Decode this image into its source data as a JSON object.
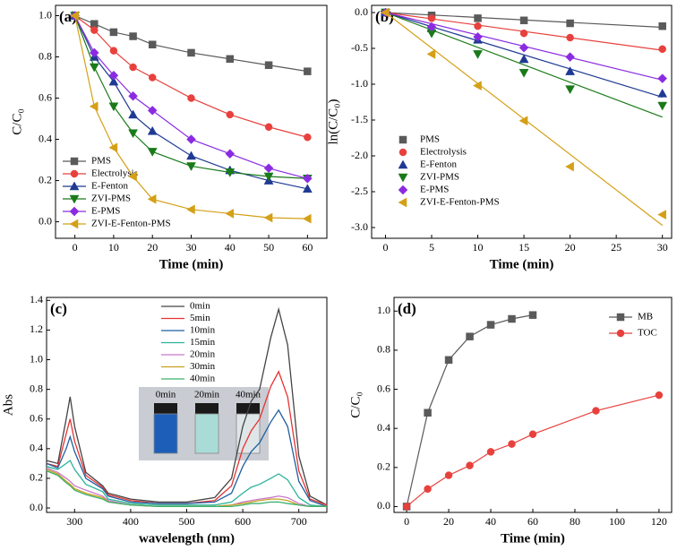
{
  "chart_data": [
    {
      "type": "line",
      "title": "(a)",
      "xlabel": "Time (min)",
      "ylabel": "C/C₀",
      "x": [
        0,
        5,
        10,
        15,
        20,
        30,
        40,
        50,
        60
      ],
      "series": [
        {
          "name": "PMS",
          "color": "#5a5a5a",
          "marker": "square",
          "values": [
            1.0,
            0.96,
            0.92,
            0.9,
            0.86,
            0.82,
            0.79,
            0.76,
            0.73
          ]
        },
        {
          "name": "Electrolysis",
          "color": "#e8413d",
          "marker": "circle",
          "values": [
            1.0,
            0.93,
            0.83,
            0.75,
            0.7,
            0.6,
            0.52,
            0.46,
            0.41
          ]
        },
        {
          "name": "E-Fenton",
          "color": "#1f3a93",
          "marker": "triangle-up",
          "values": [
            1.0,
            0.8,
            0.68,
            0.52,
            0.44,
            0.32,
            0.25,
            0.2,
            0.16
          ]
        },
        {
          "name": "ZVI-PMS",
          "color": "#1a7a1a",
          "marker": "triangle-down",
          "values": [
            1.0,
            0.75,
            0.56,
            0.43,
            0.34,
            0.27,
            0.24,
            0.22,
            0.21
          ]
        },
        {
          "name": "E-PMS",
          "color": "#8a2be2",
          "marker": "diamond",
          "values": [
            1.0,
            0.82,
            0.71,
            0.61,
            0.54,
            0.4,
            0.33,
            0.26,
            0.21
          ]
        },
        {
          "name": "ZVI-E-Fenton-PMS",
          "color": "#d4a017",
          "marker": "triangle-left",
          "values": [
            1.0,
            0.56,
            0.36,
            0.22,
            0.11,
            0.06,
            0.04,
            0.02,
            0.015
          ]
        }
      ],
      "xlim": [
        -5,
        65
      ],
      "xticks": [
        0,
        10,
        20,
        30,
        40,
        50,
        60
      ],
      "ylim": [
        -0.08,
        1.05
      ],
      "yticks": [
        {
          "value": 0,
          "label": "0.0"
        },
        {
          "value": 0.2,
          "label": "0.2"
        },
        {
          "value": 0.4,
          "label": "0.4"
        },
        {
          "value": 0.6,
          "label": "0.6"
        },
        {
          "value": 0.8,
          "label": "0.8"
        },
        {
          "value": 1,
          "label": "1.0"
        }
      ],
      "legend": "lower left"
    },
    {
      "type": "scatter",
      "title": "(b)",
      "xlabel": "Time (min)",
      "ylabel": "ln(C/C₀)",
      "fit": "linear",
      "x": [
        0,
        5,
        10,
        15,
        20,
        30
      ],
      "series": [
        {
          "name": "PMS",
          "color": "#5a5a5a",
          "marker": "square",
          "values": [
            0,
            -0.04,
            -0.08,
            -0.11,
            -0.15,
            -0.19
          ]
        },
        {
          "name": "Electrolysis",
          "color": "#e8413d",
          "marker": "circle",
          "values": [
            0,
            -0.08,
            -0.19,
            -0.29,
            -0.35,
            -0.51
          ]
        },
        {
          "name": "E-Fenton",
          "color": "#1f3a93",
          "marker": "triangle-up",
          "values": [
            0,
            -0.22,
            -0.38,
            -0.65,
            -0.82,
            -1.13
          ]
        },
        {
          "name": "ZVI-PMS",
          "color": "#1a7a1a",
          "marker": "triangle-down",
          "values": [
            0,
            -0.29,
            -0.58,
            -0.84,
            -1.07,
            -1.3
          ]
        },
        {
          "name": "E-PMS",
          "color": "#8a2be2",
          "marker": "diamond",
          "values": [
            0,
            -0.2,
            -0.34,
            -0.49,
            -0.62,
            -0.92
          ]
        },
        {
          "name": "ZVI-E-Fenton-PMS",
          "color": "#d4a017",
          "marker": "triangle-left",
          "values": [
            0,
            -0.58,
            -1.02,
            -1.51,
            -2.15,
            -2.82
          ]
        }
      ],
      "xlim": [
        -1.5,
        31
      ],
      "xticks": [
        0,
        5,
        10,
        15,
        20,
        25,
        30
      ],
      "ylim": [
        -3.15,
        0.1
      ],
      "yticks": [
        {
          "value": 0,
          "label": "0.0"
        },
        -0.5,
        {
          "value": -1,
          "label": "-1.0"
        },
        -1.5,
        {
          "value": -2,
          "label": "-2.0"
        },
        -2.5,
        {
          "value": -3,
          "label": "-3.0"
        }
      ],
      "legend": "lower left"
    },
    {
      "type": "line",
      "title": "(c)",
      "xlabel": "wavelength (nm)",
      "ylabel": "Abs",
      "x": [
        250,
        270,
        285,
        292,
        300,
        320,
        350,
        360,
        400,
        450,
        500,
        550,
        580,
        600,
        615,
        630,
        650,
        664,
        680,
        700,
        720,
        750
      ],
      "series": [
        {
          "name": "0min",
          "color": "#444444",
          "values": [
            0.32,
            0.3,
            0.6,
            0.75,
            0.55,
            0.24,
            0.15,
            0.1,
            0.06,
            0.04,
            0.04,
            0.07,
            0.2,
            0.55,
            0.72,
            0.8,
            1.15,
            1.34,
            1.1,
            0.35,
            0.08,
            0.02
          ]
        },
        {
          "name": "5min",
          "color": "#e83333",
          "values": [
            0.3,
            0.28,
            0.5,
            0.6,
            0.45,
            0.22,
            0.14,
            0.09,
            0.05,
            0.03,
            0.03,
            0.05,
            0.15,
            0.4,
            0.52,
            0.6,
            0.82,
            0.92,
            0.75,
            0.25,
            0.06,
            0.02
          ]
        },
        {
          "name": "10min",
          "color": "#1f5fa0",
          "values": [
            0.3,
            0.27,
            0.4,
            0.48,
            0.38,
            0.2,
            0.13,
            0.08,
            0.04,
            0.03,
            0.03,
            0.04,
            0.1,
            0.28,
            0.38,
            0.44,
            0.58,
            0.66,
            0.55,
            0.18,
            0.05,
            0.01
          ]
        },
        {
          "name": "15min",
          "color": "#2bb39a",
          "values": [
            0.28,
            0.26,
            0.3,
            0.32,
            0.26,
            0.16,
            0.11,
            0.06,
            0.03,
            0.02,
            0.02,
            0.02,
            0.04,
            0.1,
            0.14,
            0.16,
            0.2,
            0.23,
            0.19,
            0.07,
            0.02,
            0.01
          ]
        },
        {
          "name": "20min",
          "color": "#c879c8",
          "values": [
            0.27,
            0.24,
            0.2,
            0.18,
            0.15,
            0.12,
            0.08,
            0.05,
            0.02,
            0.01,
            0.01,
            0.01,
            0.02,
            0.04,
            0.05,
            0.06,
            0.07,
            0.08,
            0.07,
            0.03,
            0.01,
            0.01
          ]
        },
        {
          "name": "30min",
          "color": "#c8a020",
          "values": [
            0.26,
            0.23,
            0.18,
            0.16,
            0.13,
            0.1,
            0.07,
            0.04,
            0.02,
            0.01,
            0.01,
            0.01,
            0.02,
            0.03,
            0.04,
            0.05,
            0.06,
            0.06,
            0.05,
            0.02,
            0.01,
            0.01
          ]
        },
        {
          "name": "40min",
          "color": "#3bb06a",
          "values": [
            0.25,
            0.22,
            0.17,
            0.15,
            0.12,
            0.09,
            0.06,
            0.04,
            0.02,
            0.01,
            0.01,
            0.01,
            0.01,
            0.02,
            0.03,
            0.03,
            0.04,
            0.04,
            0.03,
            0.02,
            0.01,
            0.01
          ]
        }
      ],
      "inset_labels": [
        "0min",
        "20min",
        "40min"
      ],
      "xlim": [
        250,
        750
      ],
      "xticks": [
        300,
        400,
        500,
        600,
        700
      ],
      "ylim": [
        -0.03,
        1.42
      ],
      "yticks": [
        {
          "value": 0,
          "label": "0.0"
        },
        0.2,
        0.4,
        0.6,
        0.8,
        {
          "value": 1,
          "label": "1.0"
        },
        1.2,
        1.4
      ],
      "legend": "upper center"
    },
    {
      "type": "line",
      "title": "(d)",
      "xlabel": "Time (min)",
      "ylabel": "C/C₀",
      "series": [
        {
          "name": "MB",
          "color": "#5a5a5a",
          "marker": "square",
          "x": [
            0,
            10,
            20,
            30,
            40,
            50,
            60
          ],
          "values": [
            0,
            0.48,
            0.75,
            0.87,
            0.93,
            0.96,
            0.98
          ]
        },
        {
          "name": "TOC",
          "color": "#e8413d",
          "marker": "circle",
          "x": [
            0,
            10,
            20,
            30,
            40,
            50,
            60,
            90,
            120
          ],
          "values": [
            0,
            0.09,
            0.16,
            0.21,
            0.28,
            0.32,
            0.37,
            0.49,
            0.57
          ]
        }
      ],
      "xlim": [
        -6,
        126
      ],
      "xticks": [
        0,
        20,
        40,
        60,
        80,
        100,
        120
      ],
      "ylim": [
        -0.03,
        1.07
      ],
      "yticks": [
        {
          "value": 0,
          "label": "0.0"
        },
        0.2,
        0.4,
        0.6,
        0.8,
        {
          "value": 1,
          "label": "1.0"
        }
      ],
      "legend": "upper right"
    }
  ]
}
